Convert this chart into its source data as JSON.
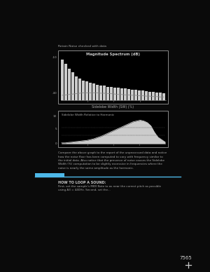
{
  "page_bg": "#0a0a0a",
  "chart_bg": "#000000",
  "text_color": "#cccccc",
  "top_label": "Retain Noise checked with data",
  "chart1_title": "Magnitude Spectrum (dB)",
  "chart1_y_top": "-10",
  "chart1_y_bot": "-40",
  "chart1_x_ticks": [
    "",
    "",
    "",
    ""
  ],
  "chart1_bar_heights": [
    98,
    88,
    76,
    67,
    58,
    52,
    48,
    45,
    42,
    40,
    38,
    36,
    35,
    33,
    32,
    31,
    30,
    29,
    28,
    27,
    26,
    25,
    24,
    23,
    22,
    21,
    20,
    19,
    18,
    17
  ],
  "chart1_noise_floor": [
    12,
    13,
    14,
    15,
    16,
    17,
    18,
    18,
    18,
    18,
    18,
    17,
    17,
    16,
    16,
    15,
    14,
    14,
    13,
    13,
    12,
    12,
    11,
    11,
    10,
    10,
    9,
    9,
    8,
    8
  ],
  "chart2_outer_label": "Sidelobe Width (SW) (%)",
  "chart2_inner_label": "Sidelobe Width Relative to Harmonic",
  "chart2_y_top": "10",
  "chart2_y_mid": "5",
  "chart2_y_bot": "0",
  "chart2_x_ticks": [
    "",
    "",
    "",
    ""
  ],
  "chart2_line": [
    0.5,
    0.5,
    0.8,
    1.0,
    1.3,
    1.5,
    1.8,
    2.0,
    2.5,
    3.0,
    3.8,
    4.5,
    5.5,
    6.5,
    7.5,
    8.5,
    9.5,
    10.5,
    11.5,
    12.5,
    13.5,
    14.0,
    14.5,
    14.0,
    13.0,
    11.0,
    7.0,
    4.0,
    2.5,
    1.0
  ],
  "body_text_lines": [
    "Compare the above graph to the report of the unprocessed data and notice",
    "how the noise floor has been computed to vary with frequency similar to",
    "the initial data. Also notice that the presence of noise causes the Sidelobe",
    "Width (%) computation to be slightly excessive in frequencies where the",
    "noise is nearly the same amplitude as the harmonic."
  ],
  "section_line_color": "#4db8e8",
  "section_badge_color": "#4db8e8",
  "section_label": "HOW TO LOOP A SOUND:",
  "section_text_lines": [
    "First, set the sample’s MIDI Note to as near the correct pitch as possible",
    "using A3 = 440Hz. Second, set the..."
  ],
  "page_number": "7565"
}
